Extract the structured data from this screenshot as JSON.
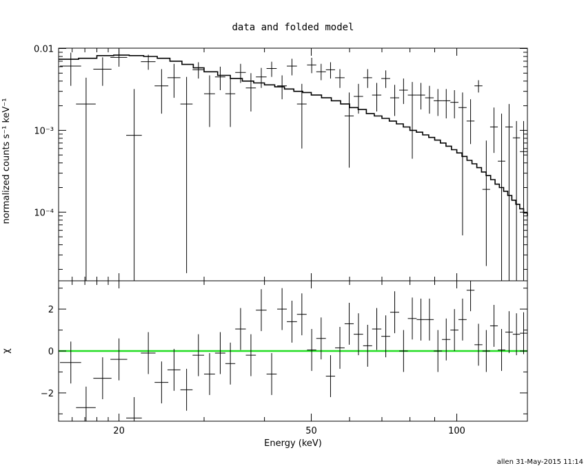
{
  "chart_data": [
    {
      "type": "scatter",
      "title": "data and folded model",
      "xlabel": "",
      "ylabel": "normalized counts s⁻¹ keV⁻¹",
      "xscale": "log",
      "yscale": "log",
      "xlim": [
        15,
        140
      ],
      "ylim": [
        1.45e-05,
        0.0101
      ],
      "grid": false,
      "y_tick_labels": [
        {
          "value": 0.01,
          "text": "0.01"
        },
        {
          "value": 0.001,
          "text": "10⁻³"
        },
        {
          "value": 0.0001,
          "text": "10⁻⁴"
        }
      ],
      "data": {
        "x": [
          15.9,
          17.1,
          18.5,
          20.0,
          21.5,
          23.0,
          24.5,
          26.0,
          27.6,
          29.2,
          30.8,
          32.4,
          34.0,
          35.7,
          37.5,
          39.4,
          41.4,
          43.5,
          45.6,
          47.8,
          50.1,
          52.4,
          54.8,
          57.3,
          59.9,
          62.6,
          65.4,
          68.3,
          71.3,
          74.4,
          77.6,
          80.9,
          84.3,
          87.8,
          91.4,
          95.1,
          98.9,
          102.8,
          106.8,
          110.9,
          115.1,
          119.4,
          123.8,
          128.3,
          132.9,
          137.5
        ],
        "xerr": [
          0.8,
          0.8,
          0.8,
          0.8,
          0.8,
          0.8,
          0.8,
          0.8,
          0.8,
          0.8,
          0.8,
          0.8,
          0.8,
          0.9,
          0.9,
          1.0,
          1.0,
          1.0,
          1.1,
          1.1,
          1.1,
          1.2,
          1.2,
          1.3,
          1.3,
          1.4,
          1.4,
          1.5,
          1.5,
          1.6,
          1.6,
          1.7,
          1.7,
          1.8,
          1.8,
          1.9,
          1.9,
          2.0,
          2.0,
          2.1,
          2.1,
          2.2,
          2.2,
          2.3,
          2.3,
          2.4
        ],
        "y": [
          0.0061,
          0.0021,
          0.0056,
          0.0078,
          0.00087,
          0.0069,
          0.0035,
          0.0044,
          0.0021,
          0.0055,
          0.0028,
          0.0045,
          0.0028,
          0.0051,
          0.0033,
          0.0045,
          0.0057,
          0.0035,
          0.0061,
          0.0021,
          0.0063,
          0.0052,
          0.0055,
          0.0044,
          0.0015,
          0.0026,
          0.0044,
          0.0027,
          0.0043,
          0.0025,
          0.0031,
          0.0027,
          0.0027,
          0.0025,
          0.0023,
          0.0023,
          0.0022,
          0.0019,
          0.0013,
          0.0035,
          0.00019,
          0.0011,
          0.00042,
          0.0011,
          0.00081,
          0.00055
        ],
        "ylo": [
          0.0035,
          1.45e-05,
          0.0035,
          0.006,
          1.45e-05,
          0.0055,
          0.0016,
          0.0025,
          1.8e-05,
          0.0043,
          0.0011,
          0.0031,
          0.0011,
          0.0038,
          0.0017,
          0.0033,
          0.0045,
          0.0024,
          0.0047,
          0.0006,
          0.005,
          0.0041,
          0.0043,
          0.0033,
          0.00035,
          0.0016,
          0.0033,
          0.0017,
          0.0033,
          0.0015,
          0.0021,
          0.00045,
          0.0018,
          0.0016,
          0.0015,
          0.0014,
          0.0014,
          5.2e-05,
          0.00068,
          0.0029,
          2.2e-05,
          0.00053,
          1.45e-05,
          1.45e-05,
          1.45e-05,
          1.45e-05
        ],
        "yhi": [
          0.0089,
          0.0044,
          0.0078,
          0.0098,
          0.0032,
          0.0084,
          0.0056,
          0.0065,
          0.0045,
          0.0068,
          0.0047,
          0.006,
          0.0047,
          0.0065,
          0.005,
          0.0058,
          0.0069,
          0.0047,
          0.0075,
          0.0037,
          0.0077,
          0.0065,
          0.0068,
          0.0056,
          0.0029,
          0.0037,
          0.0056,
          0.0038,
          0.0054,
          0.0036,
          0.0043,
          0.0039,
          0.0038,
          0.0035,
          0.0032,
          0.0032,
          0.0031,
          0.0029,
          0.0024,
          0.0041,
          0.00075,
          0.0019,
          0.0016,
          0.0021,
          0.0013,
          0.0013
        ]
      },
      "model": {
        "name": "folded model",
        "edges": [
          15,
          16.5,
          18,
          19.5,
          21,
          22.5,
          24,
          25.5,
          27,
          28.5,
          30,
          32,
          34,
          36,
          38,
          40,
          42,
          44,
          46,
          48,
          50,
          52.5,
          55,
          57.5,
          60,
          62.5,
          65,
          67.5,
          70,
          72.5,
          75,
          77.5,
          80,
          82.5,
          85,
          87.5,
          90,
          92.5,
          95,
          97.5,
          100,
          102.5,
          105,
          107.5,
          110,
          112.5,
          115,
          117.5,
          120,
          122.5,
          125,
          127.5,
          130,
          132.5,
          135,
          137.5,
          140
        ],
        "values": [
          0.0074,
          0.0076,
          0.0082,
          0.0083,
          0.0082,
          0.008,
          0.0076,
          0.007,
          0.0064,
          0.0058,
          0.0052,
          0.0047,
          0.0043,
          0.004,
          0.0038,
          0.0036,
          0.0034,
          0.0032,
          0.003,
          0.0029,
          0.0027,
          0.0025,
          0.0023,
          0.0021,
          0.0019,
          0.0018,
          0.0016,
          0.0015,
          0.0014,
          0.0013,
          0.0012,
          0.0011,
          0.001,
          0.00095,
          0.00088,
          0.00082,
          0.00076,
          0.0007,
          0.00064,
          0.00058,
          0.00053,
          0.00048,
          0.00043,
          0.00039,
          0.00035,
          0.00031,
          0.00028,
          0.00025,
          0.00022,
          0.0002,
          0.00018,
          0.00016,
          0.00014,
          0.000125,
          0.00011,
          9.8e-05,
          9e-05
        ],
        "color": "#000000"
      }
    },
    {
      "type": "scatter",
      "xlabel": "Energy (keV)",
      "ylabel": "χ",
      "xscale": "log",
      "xlim": [
        15,
        140
      ],
      "ylim": [
        -3.35,
        3.35
      ],
      "grid": false,
      "x_tick_labels": [
        {
          "value": 20,
          "text": "20"
        },
        {
          "value": 50,
          "text": "50"
        },
        {
          "value": 100,
          "text": "100"
        }
      ],
      "y_tick_labels": [
        {
          "value": 2,
          "text": "2"
        },
        {
          "value": 0,
          "text": "0"
        },
        {
          "value": -2,
          "text": "−2"
        }
      ],
      "zero_line_color": "#22dd22",
      "data": {
        "x": [
          15.9,
          17.1,
          18.5,
          20.0,
          21.5,
          23.0,
          24.5,
          26.0,
          27.6,
          29.2,
          30.8,
          32.4,
          34.0,
          35.7,
          37.5,
          39.4,
          41.4,
          43.5,
          45.6,
          47.8,
          50.1,
          52.4,
          54.8,
          57.3,
          59.9,
          62.6,
          65.4,
          68.3,
          71.3,
          74.4,
          77.6,
          80.9,
          84.3,
          87.8,
          91.4,
          95.1,
          98.9,
          102.8,
          106.8,
          110.9,
          115.1,
          119.4,
          123.8,
          128.3,
          132.9,
          137.5
        ],
        "xerr": [
          0.8,
          0.8,
          0.8,
          0.8,
          0.8,
          0.8,
          0.8,
          0.8,
          0.8,
          0.8,
          0.8,
          0.8,
          0.8,
          0.9,
          0.9,
          1.0,
          1.0,
          1.0,
          1.1,
          1.1,
          1.1,
          1.2,
          1.2,
          1.3,
          1.3,
          1.4,
          1.4,
          1.5,
          1.5,
          1.6,
          1.6,
          1.7,
          1.7,
          1.8,
          1.8,
          1.9,
          1.9,
          2.0,
          2.0,
          2.1,
          2.1,
          2.2,
          2.2,
          2.3,
          2.3,
          2.4
        ],
        "y": [
          -0.55,
          -2.7,
          -1.3,
          -0.4,
          -3.2,
          -0.1,
          -1.5,
          -0.9,
          -1.85,
          -0.2,
          -1.1,
          -0.1,
          -0.6,
          1.05,
          -0.2,
          1.95,
          -1.1,
          2.0,
          1.4,
          1.75,
          0.05,
          0.6,
          -1.2,
          0.15,
          1.3,
          0.8,
          0.25,
          1.05,
          0.7,
          1.85,
          0.0,
          1.55,
          1.5,
          1.5,
          0.0,
          0.55,
          1.0,
          1.5,
          2.9,
          0.3,
          0.0,
          1.2,
          0.05,
          0.9,
          0.8,
          0.85
        ],
        "err": [
          1.0,
          1.0,
          1.0,
          1.0,
          1.0,
          1.0,
          1.0,
          1.0,
          1.0,
          1.0,
          1.0,
          1.0,
          1.0,
          1.0,
          1.0,
          1.0,
          1.0,
          1.0,
          1.0,
          1.0,
          1.0,
          1.0,
          1.0,
          1.0,
          1.0,
          1.0,
          1.0,
          1.0,
          1.0,
          1.0,
          1.0,
          1.0,
          1.0,
          1.0,
          1.0,
          1.0,
          1.0,
          1.0,
          1.0,
          1.0,
          1.0,
          1.0,
          1.0,
          1.0,
          1.0,
          1.0
        ]
      }
    }
  ],
  "footer": {
    "stamp": "allen 31-May-2015 11:14"
  }
}
